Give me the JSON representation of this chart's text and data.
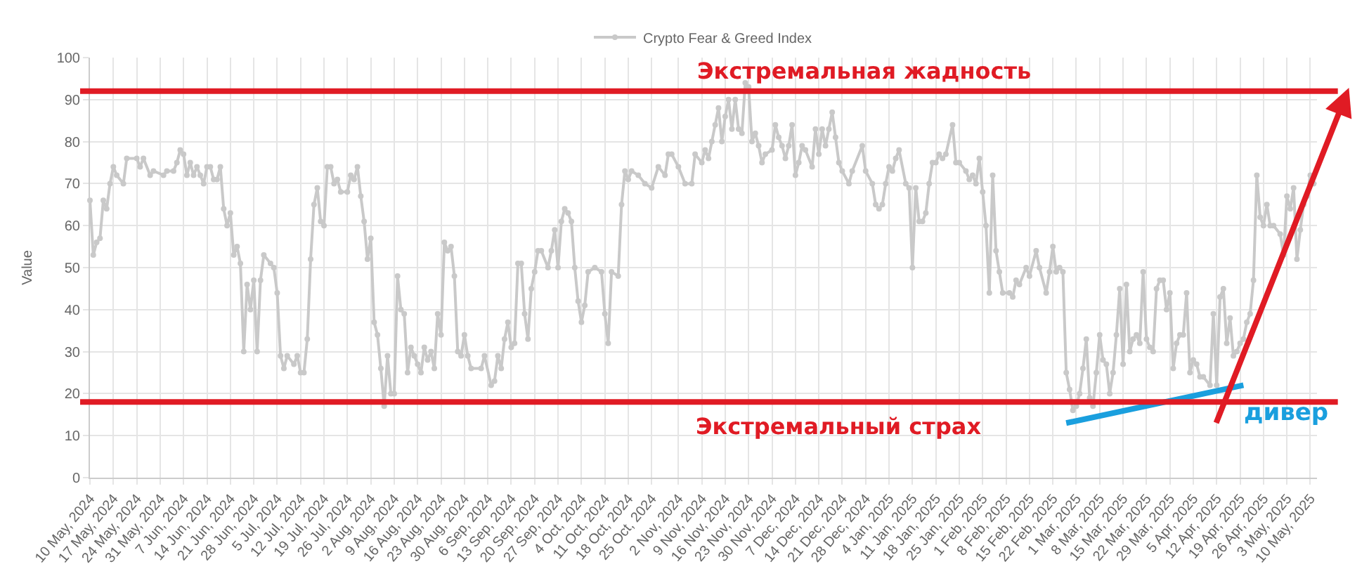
{
  "chart_data": {
    "type": "line",
    "ylabel": "Value",
    "legend": "top",
    "grid": true,
    "marker": "circle",
    "ylim": [
      0,
      100
    ],
    "yticks": [
      0,
      10,
      20,
      30,
      40,
      50,
      60,
      70,
      80,
      90,
      100
    ],
    "xlim": [
      "2024-05-10",
      "2025-05-12"
    ],
    "xticks": [
      {
        "value": "2024-05-10",
        "label": "10 May, 2024"
      },
      {
        "value": "2024-05-17",
        "label": "17 May, 2024"
      },
      {
        "value": "2024-05-24",
        "label": "24 May, 2024"
      },
      {
        "value": "2024-05-31",
        "label": "31 May, 2024"
      },
      {
        "value": "2024-06-07",
        "label": "7 Jun, 2024"
      },
      {
        "value": "2024-06-14",
        "label": "14 Jun, 2024"
      },
      {
        "value": "2024-06-21",
        "label": "21 Jun, 2024"
      },
      {
        "value": "2024-06-28",
        "label": "28 Jun, 2024"
      },
      {
        "value": "2024-07-05",
        "label": "5 Jul, 2024"
      },
      {
        "value": "2024-07-12",
        "label": "12 Jul, 2024"
      },
      {
        "value": "2024-07-19",
        "label": "19 Jul, 2024"
      },
      {
        "value": "2024-07-26",
        "label": "26 Jul, 2024"
      },
      {
        "value": "2024-08-02",
        "label": "2 Aug, 2024"
      },
      {
        "value": "2024-08-09",
        "label": "9 Aug, 2024"
      },
      {
        "value": "2024-08-16",
        "label": "16 Aug, 2024"
      },
      {
        "value": "2024-08-23",
        "label": "23 Aug, 2024"
      },
      {
        "value": "2024-08-30",
        "label": "30 Aug, 2024"
      },
      {
        "value": "2024-09-06",
        "label": "6 Sep, 2024"
      },
      {
        "value": "2024-09-13",
        "label": "13 Sep, 2024"
      },
      {
        "value": "2024-09-20",
        "label": "20 Sep, 2024"
      },
      {
        "value": "2024-09-27",
        "label": "27 Sep, 2024"
      },
      {
        "value": "2024-10-04",
        "label": "4 Oct, 2024"
      },
      {
        "value": "2024-10-11",
        "label": "11 Oct, 2024"
      },
      {
        "value": "2024-10-18",
        "label": "18 Oct, 2024"
      },
      {
        "value": "2024-10-25",
        "label": "25 Oct, 2024"
      },
      {
        "value": "2024-11-02",
        "label": "2 Nov, 2024"
      },
      {
        "value": "2024-11-09",
        "label": "9 Nov, 2024"
      },
      {
        "value": "2024-11-16",
        "label": "16 Nov, 2024"
      },
      {
        "value": "2024-11-23",
        "label": "23 Nov, 2024"
      },
      {
        "value": "2024-11-30",
        "label": "30 Nov, 2024"
      },
      {
        "value": "2024-12-07",
        "label": "7 Dec, 2024"
      },
      {
        "value": "2024-12-14",
        "label": "14 Dec, 2024"
      },
      {
        "value": "2024-12-21",
        "label": "21 Dec, 2024"
      },
      {
        "value": "2024-12-28",
        "label": "28 Dec, 2024"
      },
      {
        "value": "2025-01-04",
        "label": "4 Jan, 2025"
      },
      {
        "value": "2025-01-11",
        "label": "11 Jan, 2025"
      },
      {
        "value": "2025-01-18",
        "label": "18 Jan, 2025"
      },
      {
        "value": "2025-01-25",
        "label": "25 Jan, 2025"
      },
      {
        "value": "2025-02-01",
        "label": "1 Feb, 2025"
      },
      {
        "value": "2025-02-08",
        "label": "8 Feb, 2025"
      },
      {
        "value": "2025-02-15",
        "label": "15 Feb, 2025"
      },
      {
        "value": "2025-02-22",
        "label": "22 Feb, 2025"
      },
      {
        "value": "2025-03-01",
        "label": "1 Mar, 2025"
      },
      {
        "value": "2025-03-08",
        "label": "8 Mar, 2025"
      },
      {
        "value": "2025-03-15",
        "label": "15 Mar, 2025"
      },
      {
        "value": "2025-03-22",
        "label": "22 Mar, 2025"
      },
      {
        "value": "2025-03-29",
        "label": "29 Mar, 2025"
      },
      {
        "value": "2025-04-05",
        "label": "5 Apr, 2025"
      },
      {
        "value": "2025-04-12",
        "label": "12 Apr, 2025"
      },
      {
        "value": "2025-04-19",
        "label": "19 Apr, 2025"
      },
      {
        "value": "2025-04-26",
        "label": "26 Apr, 2025"
      },
      {
        "value": "2025-05-03",
        "label": "3 May, 2025"
      },
      {
        "value": "2025-05-10",
        "label": "10 May, 2025"
      }
    ],
    "ref_lines": [
      {
        "axis": "y",
        "value": 92,
        "label": "Экстремальная жадность",
        "color": "#e01b24"
      },
      {
        "axis": "y",
        "value": 18,
        "label": "Экстремальный страх",
        "color": "#e01b24"
      }
    ],
    "series": [
      {
        "name": "Crypto Fear & Greed Index",
        "color": "#c9c9c9",
        "x": [
          "2024-05-10",
          "2024-05-11",
          "2024-05-12",
          "2024-05-13",
          "2024-05-14",
          "2024-05-15",
          "2024-05-16",
          "2024-05-17",
          "2024-05-18",
          "2024-05-20",
          "2024-05-21",
          "2024-05-24",
          "2024-05-25",
          "2024-05-26",
          "2024-05-28",
          "2024-05-29",
          "2024-06-01",
          "2024-06-02",
          "2024-06-04",
          "2024-06-05",
          "2024-06-06",
          "2024-06-07",
          "2024-06-08",
          "2024-06-09",
          "2024-06-10",
          "2024-06-11",
          "2024-06-12",
          "2024-06-13",
          "2024-06-14",
          "2024-06-15",
          "2024-06-16",
          "2024-06-17",
          "2024-06-18",
          "2024-06-19",
          "2024-06-20",
          "2024-06-21",
          "2024-06-22",
          "2024-06-23",
          "2024-06-24",
          "2024-06-25",
          "2024-06-26",
          "2024-06-27",
          "2024-06-28",
          "2024-06-29",
          "2024-06-30",
          "2024-07-01",
          "2024-07-03",
          "2024-07-04",
          "2024-07-05",
          "2024-07-06",
          "2024-07-07",
          "2024-07-08",
          "2024-07-10",
          "2024-07-11",
          "2024-07-12",
          "2024-07-13",
          "2024-07-14",
          "2024-07-15",
          "2024-07-16",
          "2024-07-17",
          "2024-07-18",
          "2024-07-19",
          "2024-07-20",
          "2024-07-21",
          "2024-07-22",
          "2024-07-23",
          "2024-07-24",
          "2024-07-26",
          "2024-07-27",
          "2024-07-28",
          "2024-07-29",
          "2024-07-30",
          "2024-07-31",
          "2024-08-01",
          "2024-08-02",
          "2024-08-03",
          "2024-08-04",
          "2024-08-05",
          "2024-08-06",
          "2024-08-07",
          "2024-08-08",
          "2024-08-09",
          "2024-08-10",
          "2024-08-11",
          "2024-08-12",
          "2024-08-13",
          "2024-08-14",
          "2024-08-15",
          "2024-08-16",
          "2024-08-17",
          "2024-08-18",
          "2024-08-19",
          "2024-08-20",
          "2024-08-21",
          "2024-08-22",
          "2024-08-23",
          "2024-08-24",
          "2024-08-25",
          "2024-08-26",
          "2024-08-27",
          "2024-08-28",
          "2024-08-29",
          "2024-08-30",
          "2024-08-31",
          "2024-09-01",
          "2024-09-04",
          "2024-09-05",
          "2024-09-07",
          "2024-09-08",
          "2024-09-09",
          "2024-09-10",
          "2024-09-11",
          "2024-09-12",
          "2024-09-13",
          "2024-09-14",
          "2024-09-15",
          "2024-09-16",
          "2024-09-17",
          "2024-09-18",
          "2024-09-19",
          "2024-09-20",
          "2024-09-21",
          "2024-09-22",
          "2024-09-24",
          "2024-09-25",
          "2024-09-26",
          "2024-09-27",
          "2024-09-28",
          "2024-09-29",
          "2024-09-30",
          "2024-10-01",
          "2024-10-02",
          "2024-10-03",
          "2024-10-04",
          "2024-10-05",
          "2024-10-06",
          "2024-10-08",
          "2024-10-10",
          "2024-10-11",
          "2024-10-12",
          "2024-10-13",
          "2024-10-15",
          "2024-10-16",
          "2024-10-17",
          "2024-10-18",
          "2024-10-19",
          "2024-10-21",
          "2024-10-23",
          "2024-10-25",
          "2024-10-27",
          "2024-10-29",
          "2024-10-30",
          "2024-10-31",
          "2024-11-02",
          "2024-11-04",
          "2024-11-06",
          "2024-11-07",
          "2024-11-09",
          "2024-11-10",
          "2024-11-11",
          "2024-11-12",
          "2024-11-13",
          "2024-11-14",
          "2024-11-15",
          "2024-11-16",
          "2024-11-17",
          "2024-11-18",
          "2024-11-19",
          "2024-11-20",
          "2024-11-21",
          "2024-11-22",
          "2024-11-23",
          "2024-11-24",
          "2024-11-25",
          "2024-11-26",
          "2024-11-27",
          "2024-11-28",
          "2024-11-30",
          "2024-12-01",
          "2024-12-02",
          "2024-12-03",
          "2024-12-04",
          "2024-12-05",
          "2024-12-06",
          "2024-12-07",
          "2024-12-08",
          "2024-12-09",
          "2024-12-10",
          "2024-12-12",
          "2024-12-13",
          "2024-12-14",
          "2024-12-15",
          "2024-12-16",
          "2024-12-17",
          "2024-12-18",
          "2024-12-19",
          "2024-12-20",
          "2024-12-21",
          "2024-12-23",
          "2024-12-24",
          "2024-12-27",
          "2024-12-28",
          "2024-12-30",
          "2024-12-31",
          "2025-01-01",
          "2025-01-02",
          "2025-01-03",
          "2025-01-04",
          "2025-01-05",
          "2025-01-06",
          "2025-01-07",
          "2025-01-09",
          "2025-01-10",
          "2025-01-11",
          "2025-01-12",
          "2025-01-13",
          "2025-01-14",
          "2025-01-15",
          "2025-01-16",
          "2025-01-17",
          "2025-01-18",
          "2025-01-19",
          "2025-01-20",
          "2025-01-21",
          "2025-01-23",
          "2025-01-24",
          "2025-01-25",
          "2025-01-27",
          "2025-01-28",
          "2025-01-29",
          "2025-01-30",
          "2025-01-31",
          "2025-02-01",
          "2025-02-02",
          "2025-02-03",
          "2025-02-04",
          "2025-02-05",
          "2025-02-06",
          "2025-02-07",
          "2025-02-09",
          "2025-02-10",
          "2025-02-11",
          "2025-02-12",
          "2025-02-14",
          "2025-02-15",
          "2025-02-17",
          "2025-02-18",
          "2025-02-20",
          "2025-02-21",
          "2025-02-22",
          "2025-02-23",
          "2025-02-24",
          "2025-02-25",
          "2025-02-26",
          "2025-02-27",
          "2025-02-28",
          "2025-03-01",
          "2025-03-02",
          "2025-03-03",
          "2025-03-04",
          "2025-03-05",
          "2025-03-06",
          "2025-03-07",
          "2025-03-08",
          "2025-03-09",
          "2025-03-10",
          "2025-03-11",
          "2025-03-12",
          "2025-03-13",
          "2025-03-14",
          "2025-03-15",
          "2025-03-16",
          "2025-03-17",
          "2025-03-18",
          "2025-03-19",
          "2025-03-20",
          "2025-03-21",
          "2025-03-22",
          "2025-03-23",
          "2025-03-24",
          "2025-03-25",
          "2025-03-26",
          "2025-03-27",
          "2025-03-28",
          "2025-03-29",
          "2025-03-30",
          "2025-03-31",
          "2025-04-01",
          "2025-04-02",
          "2025-04-03",
          "2025-04-04",
          "2025-04-05",
          "2025-04-06",
          "2025-04-07",
          "2025-04-08",
          "2025-04-10",
          "2025-04-11",
          "2025-04-12",
          "2025-04-13",
          "2025-04-14",
          "2025-04-15",
          "2025-04-16",
          "2025-04-17",
          "2025-04-18",
          "2025-04-19",
          "2025-04-20",
          "2025-04-21",
          "2025-04-22",
          "2025-04-23",
          "2025-04-24",
          "2025-04-25",
          "2025-04-26",
          "2025-04-27",
          "2025-04-28",
          "2025-04-29",
          "2025-05-01",
          "2025-05-02",
          "2025-05-03",
          "2025-05-04",
          "2025-05-05",
          "2025-05-06",
          "2025-05-07",
          "2025-05-08",
          "2025-05-09",
          "2025-05-10",
          "2025-05-11"
        ],
        "values": [
          66,
          53,
          56,
          57,
          66,
          64,
          70,
          74,
          72,
          70,
          76,
          76,
          74,
          76,
          72,
          73,
          72,
          73,
          73,
          75,
          78,
          77,
          72,
          75,
          72,
          74,
          72,
          70,
          74,
          74,
          71,
          71,
          74,
          64,
          60,
          63,
          53,
          55,
          51,
          30,
          46,
          40,
          47,
          30,
          47,
          53,
          51,
          50,
          44,
          29,
          26,
          29,
          27,
          29,
          25,
          25,
          33,
          52,
          65,
          69,
          61,
          60,
          74,
          74,
          70,
          71,
          68,
          68,
          72,
          71,
          74,
          67,
          61,
          52,
          57,
          37,
          34,
          26,
          17,
          29,
          20,
          20,
          48,
          40,
          39,
          25,
          31,
          29,
          27,
          25,
          31,
          28,
          30,
          26,
          39,
          34,
          56,
          54,
          55,
          48,
          30,
          29,
          34,
          29,
          26,
          26,
          29,
          22,
          23,
          29,
          26,
          33,
          37,
          31,
          32,
          51,
          51,
          39,
          33,
          45,
          49,
          54,
          54,
          50,
          54,
          59,
          50,
          61,
          64,
          63,
          61,
          50,
          42,
          37,
          41,
          49,
          50,
          49,
          39,
          32,
          49,
          48,
          65,
          73,
          71,
          73,
          72,
          70,
          69,
          74,
          72,
          77,
          77,
          74,
          70,
          70,
          77,
          75,
          78,
          76,
          80,
          84,
          88,
          80,
          86,
          90,
          83,
          90,
          83,
          82,
          94,
          93,
          80,
          82,
          79,
          75,
          77,
          78,
          84,
          81,
          79,
          76,
          79,
          84,
          72,
          75,
          79,
          78,
          74,
          83,
          77,
          83,
          79,
          83,
          87,
          81,
          75,
          73,
          70,
          73,
          79,
          73,
          70,
          65,
          64,
          65,
          70,
          74,
          73,
          76,
          78,
          70,
          69,
          50,
          69,
          61,
          61,
          63,
          70,
          75,
          75,
          77,
          76,
          77,
          84,
          75,
          75,
          73,
          71,
          72,
          70,
          76,
          68,
          60,
          44,
          72,
          54,
          49,
          44,
          44,
          43,
          47,
          46,
          50,
          48,
          54,
          50,
          44,
          49,
          55,
          49,
          50,
          49,
          25,
          21,
          16,
          17,
          20,
          26,
          33,
          19,
          17,
          25,
          34,
          28,
          27,
          20,
          25,
          34,
          45,
          27,
          46,
          30,
          33,
          34,
          32,
          49,
          33,
          31,
          30,
          45,
          47,
          47,
          40,
          44,
          26,
          32,
          34,
          34,
          44,
          25,
          28,
          27,
          24,
          24,
          22,
          39,
          22,
          43,
          45,
          32,
          38,
          29,
          30,
          32,
          33,
          37,
          39,
          47,
          72,
          62,
          60,
          65,
          60,
          60,
          58,
          53,
          67,
          64,
          69,
          52,
          59,
          65,
          67,
          72,
          70
        ]
      },
      {
        "name": "дивер",
        "type": "line",
        "color": "#1a9fde",
        "marker": "none",
        "x": [
          "2025-02-26",
          "2025-04-20"
        ],
        "values": [
          13,
          22
        ]
      }
    ]
  }
}
